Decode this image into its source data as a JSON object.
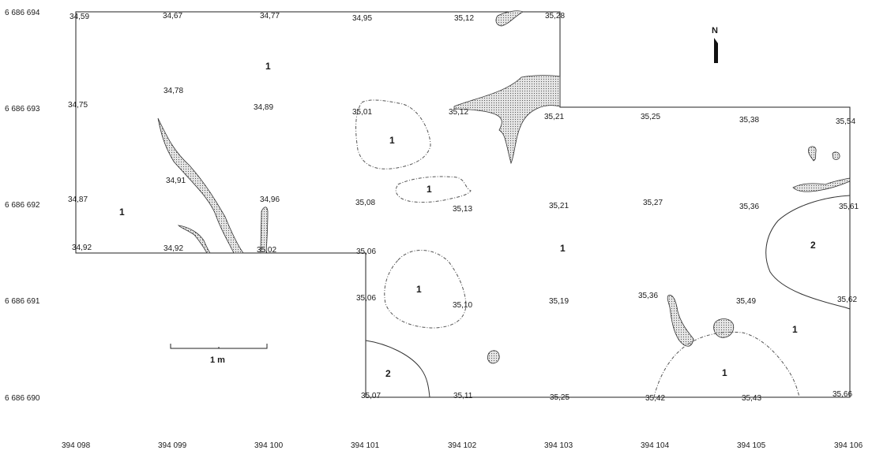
{
  "north_label": "N",
  "scale_label": "1 m",
  "y_axis_labels": [
    "6 686 694",
    "6 686 693",
    "6 686 692",
    "6 686 691",
    "6 686 690"
  ],
  "x_axis_labels": [
    "394 098",
    "394 099",
    "394 100",
    "394 101",
    "394 102",
    "394 103",
    "394 104",
    "394 105",
    "394 106"
  ],
  "elevations": {
    "e01": "34,59",
    "e02": "34,67",
    "e03": "34,77",
    "e04": "34,95",
    "e05": "35,12",
    "e06": "35,28",
    "e07": "34,78",
    "e08": "34,75",
    "e09": "34,89",
    "e10": "35,01",
    "e11": "35,12",
    "e12": "35,21",
    "e13": "35,25",
    "e14": "35,38",
    "e15": "35,54",
    "e16": "34,91",
    "e17": "34,87",
    "e18": "34,96",
    "e19": "35,08",
    "e20": "35,13",
    "e21": "35,21",
    "e22": "35,27",
    "e23": "35,36",
    "e24": "35,61",
    "e25": "34,92",
    "e26": "34,92",
    "e27": "35,02",
    "e28": "35,06",
    "e29": "35,06",
    "e30": "35,10",
    "e31": "35,19",
    "e32": "35,36",
    "e33": "35,49",
    "e34": "35,62",
    "e35": "35,07",
    "e36": "35,11",
    "e37": "35,25",
    "e38": "35,42",
    "e39": "35,43",
    "e40": "35,66"
  },
  "zones": {
    "z01": "1",
    "z02": "1",
    "z03": "1",
    "z04": "1",
    "z05": "1",
    "z06": "1",
    "z07": "2",
    "z08": "1",
    "z09": "1",
    "z10": "2"
  }
}
